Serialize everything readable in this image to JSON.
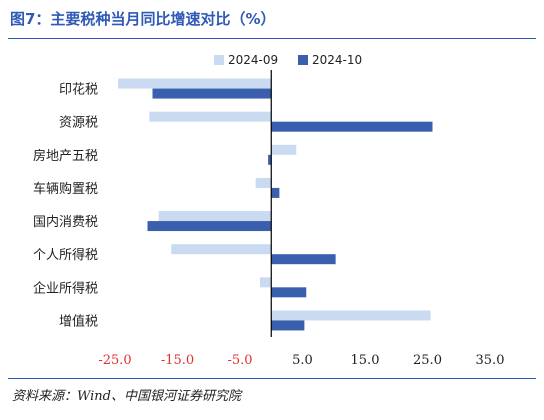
{
  "figure": {
    "title": "图7：主要税种当月同比增速对比（%）",
    "source": "资料来源：Wind、中国银河证券研究院"
  },
  "chart_data": {
    "type": "bar",
    "orientation": "horizontal",
    "categories": [
      "印花税",
      "资源税",
      "房地产五税",
      "车辆购置税",
      "国内消费税",
      "个人所得税",
      "企业所得税",
      "增值税"
    ],
    "series": [
      {
        "name": "2024-09",
        "color": "#c9daf1",
        "values": [
          -24.5,
          -19.5,
          4.0,
          -2.5,
          -18.0,
          -16.0,
          -1.8,
          25.5
        ]
      },
      {
        "name": "2024-10",
        "color": "#3a5fae",
        "values": [
          -19.0,
          25.8,
          -0.5,
          1.3,
          -19.8,
          10.3,
          5.6,
          5.3
        ]
      }
    ],
    "xlim": [
      -25,
      35
    ],
    "xticks": [
      "-25.0",
      "-15.0",
      "-5.0",
      "5.0",
      "15.0",
      "25.0",
      "35.0"
    ],
    "xtick_values": [
      -25,
      -15,
      -5,
      5,
      15,
      25,
      35
    ],
    "negative_tick_color": "#e0312c",
    "positive_tick_color": "#222222",
    "legend_position": "top-center",
    "grid": false
  }
}
